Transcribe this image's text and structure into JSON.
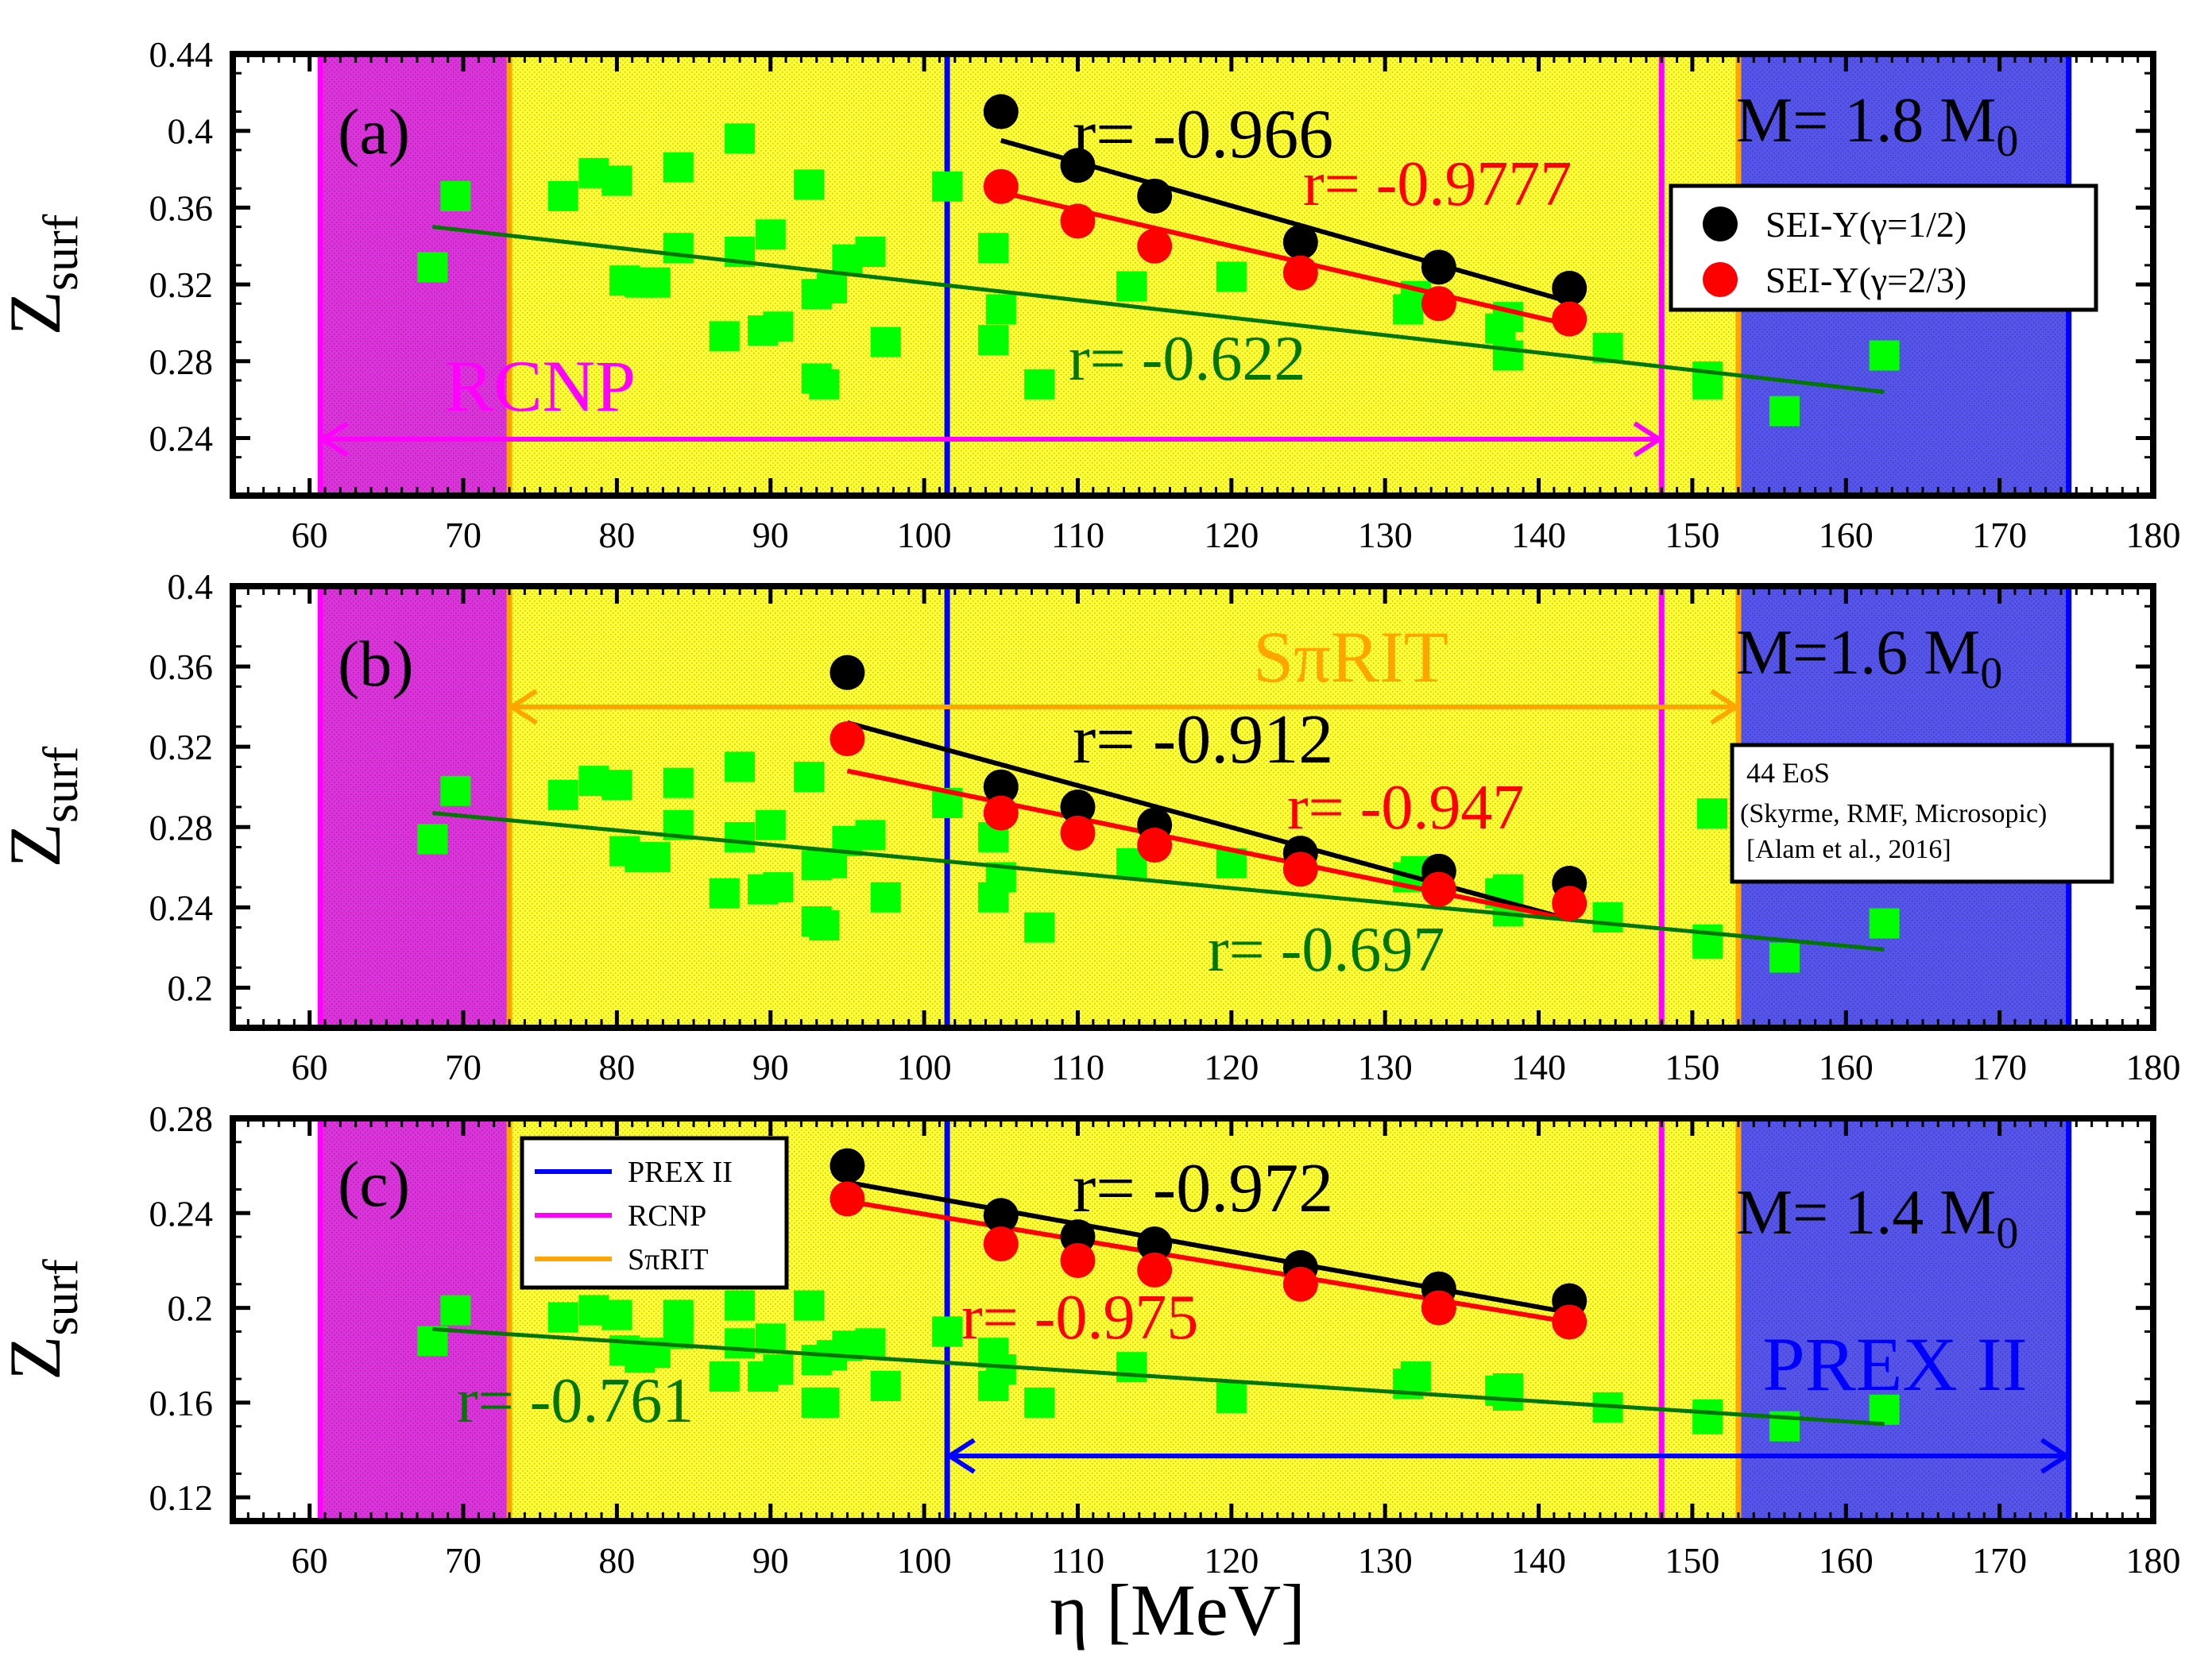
{
  "figure": {
    "x_axis_label": "η [MeV]",
    "colors": {
      "prex": "#0000ff",
      "rcnp": "#ff00ff",
      "spirit": "#ffa500",
      "yellow_region": "#ffff33",
      "pink_region": "#dd33dd",
      "blue_region": "#5555ee",
      "green": "#00ff00",
      "green_line": "#007700",
      "sei_half": "#000000",
      "sei_twothirds": "#ff0000"
    },
    "legend_main": {
      "sei_half": "SEI-Y(γ=1/2)",
      "sei_twothirds": "SEI-Y(γ=2/3)"
    },
    "legend_eos": {
      "line1": "44 EoS",
      "line2": "(Skyrme, RMF, Microsopic)",
      "line3": "[Alam et al., 2016]"
    },
    "legend_lines": {
      "prex": "PREX II",
      "rcnp": "RCNP",
      "spirit": "SπRIT"
    }
  },
  "chart_data": [
    {
      "type": "scatter",
      "panel": "(a)",
      "ylabel": "Z",
      "ylabel_sub": "surf",
      "xlabel": "η [MeV]",
      "xlim": [
        55,
        180
      ],
      "ylim": [
        0.21,
        0.44
      ],
      "xticks": [
        "60",
        "70",
        "80",
        "90",
        "100",
        "110",
        "120",
        "130",
        "140",
        "150",
        "160",
        "170",
        "180"
      ],
      "yticks": [
        "0.24",
        "0.28",
        "0.32",
        "0.36",
        "0.4",
        "0.44"
      ],
      "mass_label": "M= 1.8 M",
      "mass_sub": "0",
      "regions": {
        "rcnp": [
          60.7,
          148
        ],
        "spirit": [
          73,
          153
        ],
        "prex": [
          101.5,
          174.5
        ]
      },
      "arrow_label": "RCNP",
      "r_black": "r= -0.966",
      "r_red": "r= -0.9777",
      "r_green": "r= -0.622",
      "series": [
        {
          "name": "SEI-Y(γ=1/2)",
          "x": [
            105,
            110,
            115,
            124.5,
            133.5,
            142
          ],
          "y": [
            0.41,
            0.382,
            0.366,
            0.342,
            0.329,
            0.318
          ]
        },
        {
          "name": "SEI-Y(γ=2/3)",
          "x": [
            105,
            110,
            115,
            124.5,
            133.5,
            142
          ],
          "y": [
            0.371,
            0.353,
            0.34,
            0.326,
            0.31,
            0.302
          ]
        },
        {
          "name": "44 EoS",
          "x": [
            68,
            69.5,
            76.5,
            78.5,
            80,
            80.5,
            81.5,
            82.5,
            84,
            84,
            87,
            88,
            88,
            89.5,
            90,
            90.5,
            92.5,
            93,
            93,
            93.5,
            94,
            95,
            96.5,
            97.5,
            101.5,
            104.5,
            104.5,
            105,
            107.5,
            113.5,
            120,
            131.5,
            132,
            137.5,
            138,
            138,
            144.5,
            151,
            151,
            156,
            162.5
          ],
          "y": [
            0.329,
            0.366,
            0.366,
            0.378,
            0.374,
            0.322,
            0.321,
            0.321,
            0.381,
            0.339,
            0.293,
            0.396,
            0.337,
            0.296,
            0.346,
            0.298,
            0.372,
            0.315,
            0.271,
            0.268,
            0.318,
            0.333,
            0.337,
            0.29,
            0.371,
            0.339,
            0.291,
            0.307,
            0.268,
            0.319,
            0.324,
            0.307,
            0.314,
            0.297,
            0.303,
            0.283,
            0.287,
            0.272,
            0.268,
            0.254,
            0.283
          ]
        }
      ],
      "fits": [
        {
          "name": "black",
          "x": [
            105,
            142
          ],
          "y": [
            0.395,
            0.311
          ]
        },
        {
          "name": "red",
          "x": [
            105,
            142
          ],
          "y": [
            0.368,
            0.299
          ]
        },
        {
          "name": "green",
          "x": [
            68,
            162.5
          ],
          "y": [
            0.35,
            0.264
          ]
        }
      ]
    },
    {
      "type": "scatter",
      "panel": "(b)",
      "ylabel": "Z",
      "ylabel_sub": "surf",
      "xlabel": "η [MeV]",
      "xlim": [
        55,
        180
      ],
      "ylim": [
        0.18,
        0.4
      ],
      "xticks": [
        "60",
        "70",
        "80",
        "90",
        "100",
        "110",
        "120",
        "130",
        "140",
        "150",
        "160",
        "170",
        "180"
      ],
      "yticks": [
        "0.2",
        "0.24",
        "0.28",
        "0.32",
        "0.36",
        "0.4"
      ],
      "mass_label": "M=1.6 M",
      "mass_sub": "0",
      "regions": {
        "rcnp": [
          60.7,
          148
        ],
        "spirit": [
          73,
          153
        ],
        "prex": [
          101.5,
          174.5
        ]
      },
      "arrow_label": "SπRIT",
      "r_black": "r= -0.912",
      "r_red": "r= -0.947",
      "r_green": "r= -0.697",
      "series": [
        {
          "name": "SEI-Y(γ=1/2)",
          "x": [
            95,
            105,
            110,
            115,
            124.5,
            133.5,
            142
          ],
          "y": [
            0.357,
            0.3,
            0.29,
            0.281,
            0.267,
            0.258,
            0.252
          ]
        },
        {
          "name": "SEI-Y(γ=2/3)",
          "x": [
            95,
            105,
            110,
            115,
            124.5,
            133.5,
            142
          ],
          "y": [
            0.324,
            0.287,
            0.277,
            0.271,
            0.259,
            0.249,
            0.242
          ]
        },
        {
          "name": "44 EoS",
          "x": [
            68,
            69.5,
            76.5,
            78.5,
            80,
            80.5,
            81.5,
            82.5,
            84,
            84,
            87,
            88,
            88,
            89.5,
            90,
            90.5,
            92.5,
            93,
            93,
            93.5,
            94,
            95,
            96.5,
            97.5,
            101.5,
            104.5,
            104.5,
            105,
            107.5,
            113.5,
            120,
            131.5,
            132,
            137.5,
            138,
            138,
            144.5,
            151,
            151,
            156,
            162.5
          ],
          "y": [
            0.274,
            0.298,
            0.296,
            0.303,
            0.301,
            0.268,
            0.265,
            0.265,
            0.302,
            0.281,
            0.247,
            0.31,
            0.275,
            0.249,
            0.281,
            0.25,
            0.305,
            0.261,
            0.233,
            0.231,
            0.262,
            0.273,
            0.276,
            0.245,
            0.292,
            0.275,
            0.245,
            0.255,
            0.23,
            0.262,
            0.262,
            0.255,
            0.258,
            0.247,
            0.249,
            0.238,
            0.235,
            0.224,
            0.222,
            0.215,
            0.232
          ]
        }
      ],
      "fits": [
        {
          "name": "black",
          "x": [
            95,
            142
          ],
          "y": [
            0.332,
            0.234
          ]
        },
        {
          "name": "red",
          "x": [
            95,
            142
          ],
          "y": [
            0.308,
            0.234
          ]
        },
        {
          "name": "green",
          "x": [
            68,
            162.5
          ],
          "y": [
            0.287,
            0.219
          ]
        }
      ]
    },
    {
      "type": "scatter",
      "panel": "(c)",
      "ylabel": "Z",
      "ylabel_sub": "surf",
      "xlabel": "η [MeV]",
      "xlim": [
        55,
        180
      ],
      "ylim": [
        0.11,
        0.28
      ],
      "xticks": [
        "60",
        "70",
        "80",
        "90",
        "100",
        "110",
        "120",
        "130",
        "140",
        "150",
        "160",
        "170",
        "180"
      ],
      "yticks": [
        "0.12",
        "0.16",
        "0.2",
        "0.24",
        "0.28"
      ],
      "mass_label": "M= 1.4 M",
      "mass_sub": "0",
      "regions": {
        "rcnp": [
          60.7,
          148
        ],
        "spirit": [
          73,
          153
        ],
        "prex": [
          101.5,
          174.5
        ]
      },
      "arrow_label": "PREX II",
      "r_black": "r= -0.972",
      "r_red": "r= -0.975",
      "r_green": "r= -0.761",
      "series": [
        {
          "name": "SEI-Y(γ=1/2)",
          "x": [
            95,
            105,
            110,
            115,
            124.5,
            133.5,
            142
          ],
          "y": [
            0.26,
            0.239,
            0.23,
            0.227,
            0.217,
            0.208,
            0.203
          ]
        },
        {
          "name": "SEI-Y(γ=2/3)",
          "x": [
            95,
            105,
            110,
            115,
            124.5,
            133.5,
            142
          ],
          "y": [
            0.246,
            0.227,
            0.22,
            0.216,
            0.21,
            0.2,
            0.194
          ]
        },
        {
          "name": "44 EoS",
          "x": [
            68,
            69.5,
            76.5,
            78.5,
            80,
            80.5,
            81.5,
            82.5,
            84,
            84,
            87,
            88,
            88,
            89.5,
            90,
            90.5,
            92.5,
            93,
            93,
            93.5,
            94,
            95,
            96.5,
            97.5,
            101.5,
            104.5,
            104.5,
            105,
            107.5,
            113.5,
            120,
            131.5,
            132,
            137.5,
            138,
            138,
            144.5,
            151,
            151,
            156,
            162.5
          ],
          "y": [
            0.186,
            0.199,
            0.196,
            0.199,
            0.197,
            0.182,
            0.179,
            0.181,
            0.197,
            0.189,
            0.171,
            0.201,
            0.185,
            0.171,
            0.187,
            0.174,
            0.201,
            0.178,
            0.16,
            0.16,
            0.18,
            0.184,
            0.185,
            0.167,
            0.19,
            0.181,
            0.167,
            0.174,
            0.16,
            0.175,
            0.162,
            0.168,
            0.171,
            0.165,
            0.163,
            0.166,
            0.158,
            0.155,
            0.153,
            0.15,
            0.157
          ]
        }
      ],
      "fits": [
        {
          "name": "black",
          "x": [
            95,
            142
          ],
          "y": [
            0.253,
            0.198
          ]
        },
        {
          "name": "red",
          "x": [
            95,
            142
          ],
          "y": [
            0.245,
            0.194
          ]
        },
        {
          "name": "green",
          "x": [
            68,
            162.5
          ],
          "y": [
            0.191,
            0.151
          ]
        }
      ]
    }
  ]
}
